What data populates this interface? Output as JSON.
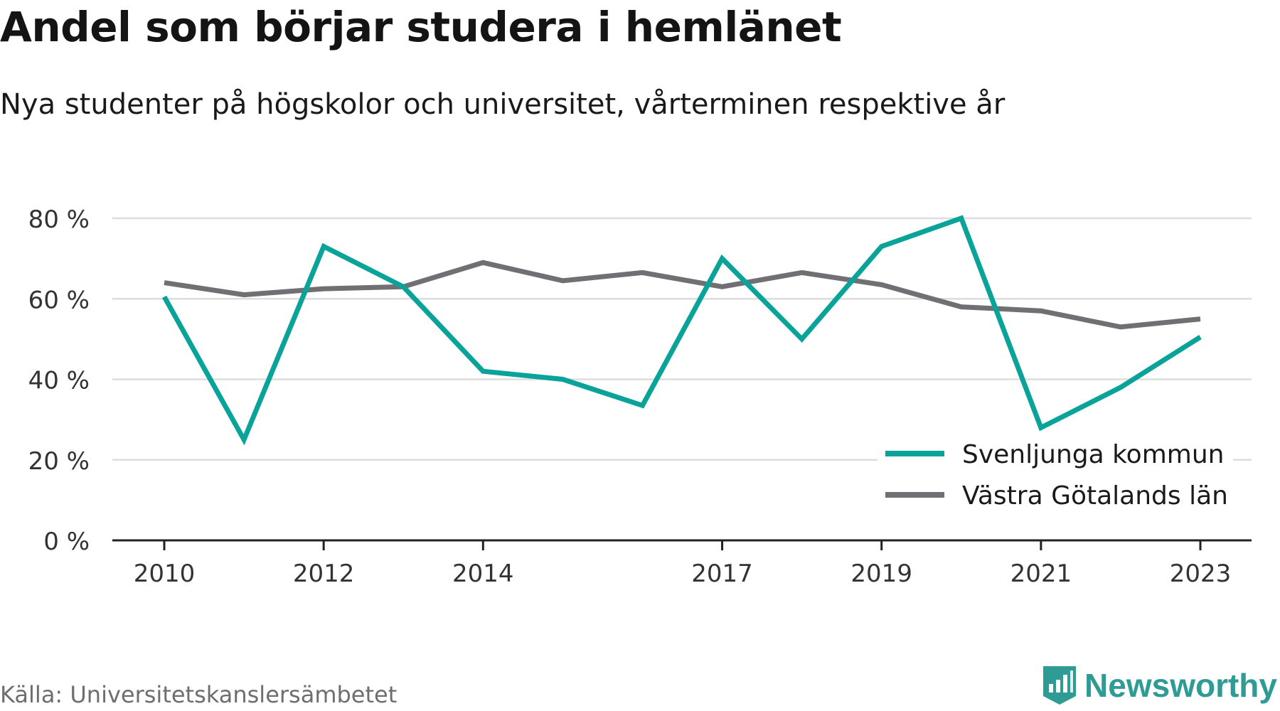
{
  "header": {
    "title": "Andel som börjar studera i hemlänet",
    "subtitle": "Nya studenter på högskolor och universitet, vårterminen respektive år"
  },
  "footer": {
    "source": "Källa: Universitetskanslersämbetet",
    "brand": "Newsworthy"
  },
  "colors": {
    "series_teal": "#0aa39a",
    "series_gray": "#716f74",
    "grid": "#dddddd",
    "axis": "#222222",
    "brand": "#2e9c94"
  },
  "chart_data": {
    "type": "line",
    "x": [
      2010,
      2011,
      2012,
      2013,
      2014,
      2015,
      2016,
      2017,
      2018,
      2019,
      2020,
      2021,
      2022,
      2023
    ],
    "x_tick_labels": [
      "2010",
      "2012",
      "2014",
      "2017",
      "2019",
      "2021",
      "2023"
    ],
    "y_ticks": [
      0,
      20,
      40,
      60,
      80
    ],
    "y_tick_labels": [
      "0 %",
      "20 %",
      "40 %",
      "60 %",
      "80 %"
    ],
    "ylim": [
      0,
      80
    ],
    "grid": true,
    "legend_position": "bottom-right",
    "series": [
      {
        "name": "Svenljunga kommun",
        "color": "#0aa39a",
        "values": [
          60.5,
          25,
          73,
          63,
          42,
          40,
          33.5,
          70,
          50,
          73,
          80,
          28,
          38,
          50.5
        ]
      },
      {
        "name": "Västra Götalands län",
        "color": "#716f74",
        "values": [
          64,
          61,
          62.5,
          63,
          69,
          64.5,
          66.5,
          63,
          66.5,
          63.5,
          58,
          57,
          53,
          55
        ]
      }
    ]
  }
}
